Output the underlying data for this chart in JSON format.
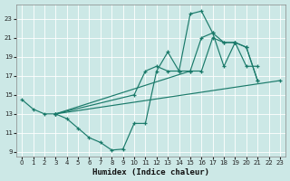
{
  "xlabel": "Humidex (Indice chaleur)",
  "bg_color": "#cce8e6",
  "line_color": "#1a7a6a",
  "grid_color": "#ffffff",
  "xlim": [
    -0.5,
    23.5
  ],
  "ylim": [
    8.5,
    24.5
  ],
  "xticks": [
    0,
    1,
    2,
    3,
    4,
    5,
    6,
    7,
    8,
    9,
    10,
    11,
    12,
    13,
    14,
    15,
    16,
    17,
    18,
    19,
    20,
    21,
    22,
    23
  ],
  "yticks": [
    9,
    11,
    13,
    15,
    17,
    19,
    21,
    23
  ],
  "line1_x": [
    0,
    1,
    2,
    3,
    4,
    5,
    6,
    7,
    8,
    9,
    10,
    11,
    12,
    13,
    14,
    15,
    16,
    17,
    18,
    19,
    20,
    21
  ],
  "line1_y": [
    14.5,
    13.5,
    13.0,
    13.0,
    12.5,
    11.5,
    10.5,
    10.0,
    9.2,
    9.3,
    12.0,
    12.0,
    17.5,
    19.5,
    17.5,
    23.5,
    23.8,
    21.5,
    18.0,
    20.5,
    18.0,
    18.0
  ],
  "line2_x": [
    3,
    10,
    11,
    12,
    13,
    14,
    15,
    16,
    17,
    18,
    19,
    20,
    21
  ],
  "line2_y": [
    13.0,
    15.0,
    17.5,
    18.0,
    17.5,
    17.5,
    17.5,
    21.0,
    21.5,
    20.5,
    20.5,
    20.0,
    16.5
  ],
  "line3_x": [
    3,
    23
  ],
  "line3_y": [
    13.0,
    16.5
  ],
  "line4_x": [
    3,
    15,
    16,
    17,
    18,
    19,
    20,
    21
  ],
  "line4_y": [
    13.0,
    17.5,
    17.5,
    21.0,
    20.5,
    20.5,
    20.0,
    16.5
  ]
}
